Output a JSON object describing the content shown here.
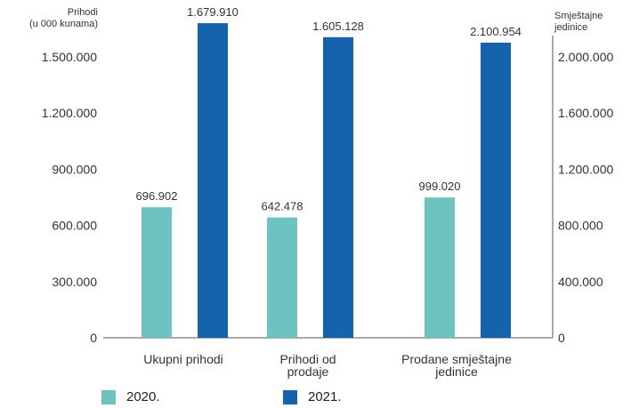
{
  "chart_data": {
    "type": "bar",
    "categories": [
      "Ukupni prihodi",
      "Prihodi od prodaje",
      "Prodane smještajne jedinice"
    ],
    "category_labels": [
      [
        "Ukupni prihodi"
      ],
      [
        "Prihodi od",
        "prodaje"
      ],
      [
        "Prodane smještajne",
        "jedinice"
      ]
    ],
    "series": [
      {
        "name": "2020.",
        "color": "#6cc3c0",
        "values": [
          696902,
          642478,
          999020
        ],
        "labels": [
          "696.902",
          "642.478",
          "999.020"
        ]
      },
      {
        "name": "2021.",
        "color": "#1563ac",
        "values": [
          1679910,
          1605128,
          2100954
        ],
        "labels": [
          "1.679.910",
          "1.605.128",
          "2.100.954"
        ]
      }
    ],
    "axis_for_category": [
      "left",
      "left",
      "right"
    ],
    "y_left": {
      "label_lines": [
        "Prihodi",
        "(u 000 kunama)"
      ],
      "ylim": [
        0,
        1590000
      ],
      "ticks": [
        0,
        300000,
        600000,
        900000,
        1200000,
        1500000
      ],
      "tick_labels": [
        "0",
        "300.000",
        "600.000",
        "900.000",
        "1.200.000",
        "1.500.000"
      ]
    },
    "y_right": {
      "label_lines": [
        "Smještajne",
        "jedinice"
      ],
      "ylim": [
        0,
        2120000
      ],
      "ticks": [
        0,
        400000,
        800000,
        1200000,
        1600000,
        2000000
      ],
      "tick_labels": [
        "0",
        "400.000",
        "800.000",
        "1.200.000",
        "1.600.000",
        "2.000.000"
      ]
    },
    "grid": false,
    "legend_position": "bottom"
  }
}
